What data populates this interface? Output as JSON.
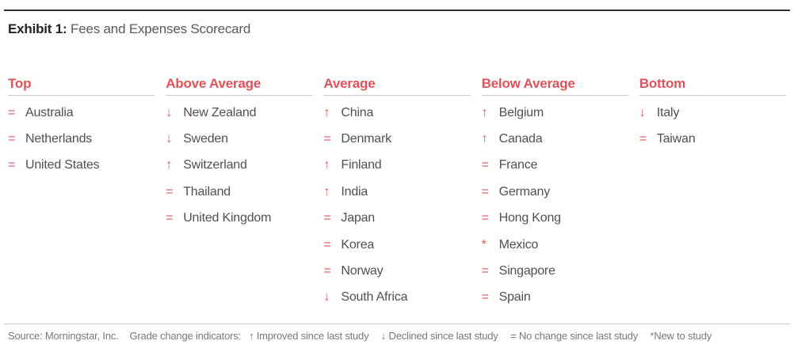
{
  "colors": {
    "accent": "#e15359",
    "text_dark": "#222222",
    "text_soft": "#58595b",
    "text_body": "#4f5052",
    "text_muted": "#77787b",
    "rule_dark": "#333333",
    "rule_light": "#c9cacb"
  },
  "title": {
    "prefix": "Exhibit 1:",
    "text": " Fees and Expenses Scorecard"
  },
  "indicator_glyphs": {
    "improved": "↑",
    "declined": "↓",
    "no_change": "=",
    "new": "*"
  },
  "columns": [
    {
      "label": "Top",
      "entries": [
        {
          "indicator": "=",
          "country": "Australia"
        },
        {
          "indicator": "=",
          "country": "Netherlands"
        },
        {
          "indicator": "=",
          "country": "United States"
        }
      ]
    },
    {
      "label": "Above Average",
      "entries": [
        {
          "indicator": "↓",
          "country": "New Zealand"
        },
        {
          "indicator": "↓",
          "country": "Sweden"
        },
        {
          "indicator": "↑",
          "country": "Switzerland"
        },
        {
          "indicator": "=",
          "country": "Thailand"
        },
        {
          "indicator": "=",
          "country": "United Kingdom"
        }
      ]
    },
    {
      "label": "Average",
      "entries": [
        {
          "indicator": "↑",
          "country": "China"
        },
        {
          "indicator": "=",
          "country": "Denmark"
        },
        {
          "indicator": "↑",
          "country": "Finland"
        },
        {
          "indicator": "↑",
          "country": "India"
        },
        {
          "indicator": "=",
          "country": "Japan"
        },
        {
          "indicator": "=",
          "country": "Korea"
        },
        {
          "indicator": "=",
          "country": "Norway"
        },
        {
          "indicator": "↓",
          "country": "South Africa"
        }
      ]
    },
    {
      "label": "Below Average",
      "entries": [
        {
          "indicator": "↑",
          "country": "Belgium"
        },
        {
          "indicator": "↑",
          "country": "Canada"
        },
        {
          "indicator": "=",
          "country": "France"
        },
        {
          "indicator": "=",
          "country": "Germany"
        },
        {
          "indicator": "=",
          "country": "Hong Kong"
        },
        {
          "indicator": "*",
          "country": "Mexico"
        },
        {
          "indicator": "=",
          "country": "Singapore"
        },
        {
          "indicator": "=",
          "country": "Spain"
        }
      ]
    },
    {
      "label": "Bottom",
      "entries": [
        {
          "indicator": "↓",
          "country": "Italy"
        },
        {
          "indicator": "=",
          "country": "Taiwan"
        }
      ]
    }
  ],
  "footer": {
    "source": "Source: Morningstar, Inc.",
    "legend_label": "Grade change indicators:",
    "legend": [
      "↑ Improved since last study",
      "↓ Declined since last study",
      "= No change since last study",
      "*New to study"
    ]
  }
}
